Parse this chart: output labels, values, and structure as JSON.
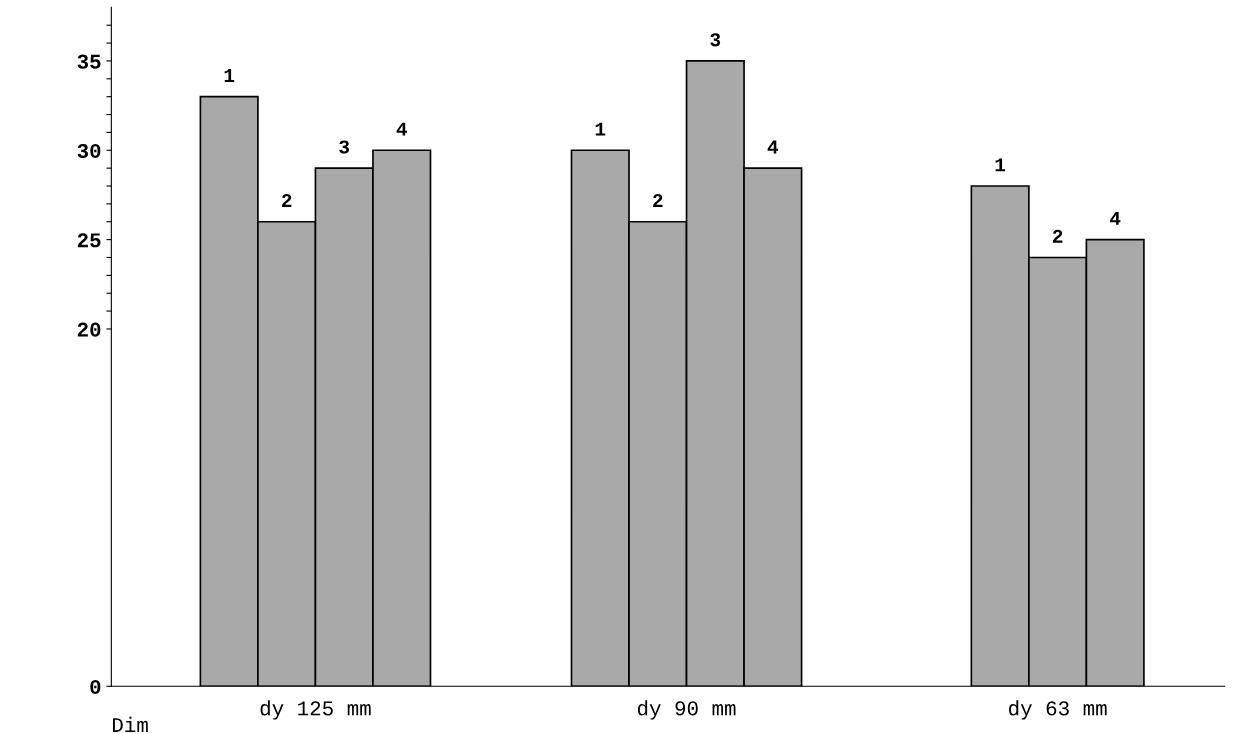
{
  "chart_data": {
    "type": "bar",
    "xlabel": "Dim",
    "categories": [
      "dy 125 mm",
      "dy 90 mm",
      "dy 63 mm"
    ],
    "series": [
      {
        "name": "1",
        "color": "#a9a9a9",
        "values": [
          33,
          30,
          28
        ]
      },
      {
        "name": "2",
        "color": "#a9a9a9",
        "values": [
          26,
          26,
          24
        ]
      },
      {
        "name": "3",
        "color": "#a9a9a9",
        "values": [
          29,
          35,
          null
        ]
      },
      {
        "name": "4",
        "color": "#a9a9a9",
        "values": [
          30,
          29,
          25
        ]
      }
    ],
    "ylim": [
      0,
      38
    ],
    "yticks": [
      0,
      20,
      {
        "value": 21,
        "label": null
      },
      {
        "value": 22,
        "label": null
      },
      {
        "value": 23,
        "label": null
      },
      {
        "value": 24,
        "label": null
      },
      25,
      {
        "value": 26,
        "label": null
      },
      {
        "value": 27,
        "label": null
      },
      {
        "value": 28,
        "label": null
      },
      {
        "value": 29,
        "label": null
      },
      30,
      {
        "value": 31,
        "label": null
      },
      {
        "value": 32,
        "label": null
      },
      {
        "value": 33,
        "label": null
      },
      {
        "value": 34,
        "label": null
      },
      35,
      {
        "value": 36,
        "label": null
      },
      {
        "value": 37,
        "label": null
      }
    ],
    "grid": false,
    "legend": false
  }
}
